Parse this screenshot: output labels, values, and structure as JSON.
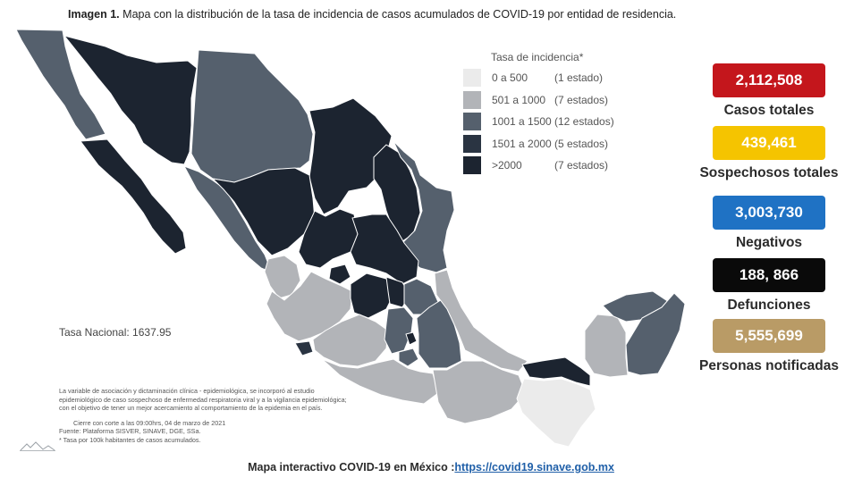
{
  "caption": {
    "label": "Imagen 1.",
    "text": "Mapa con la distribución de la tasa de incidencia de casos acumulados de COVID-19 por entidad de residencia."
  },
  "legend": {
    "title": "Tasa de incidencia*",
    "classes": [
      {
        "range": "0 a 500",
        "count": "(1 estado)",
        "color": "#ebebeb"
      },
      {
        "range": "501 a 1000",
        "count": "(7 estados)",
        "color": "#b2b4b8"
      },
      {
        "range": "1001 a 1500",
        "count": "(12 estados)",
        "color": "#55606d"
      },
      {
        "range": "1501 a 2000",
        "count": "(5 estados)",
        "color": "#2a3442"
      },
      {
        "range": ">2000",
        "count": "(7 estados)",
        "color": "#1c2430"
      }
    ]
  },
  "stats": [
    {
      "value": "2,112,508",
      "label": "Casos totales",
      "color": "#c4161c"
    },
    {
      "value": "439,461",
      "label": "Sospechosos totales",
      "color": "#f5c400"
    },
    {
      "value": "3,003,730",
      "label": "Negativos",
      "color": "#1f72c4"
    },
    {
      "value": "188, 866",
      "label": "Defunciones",
      "color": "#0a0a0a"
    },
    {
      "value": "5,555,699",
      "label": "Personas notificadas",
      "color": "#b99b66"
    }
  ],
  "national_rate": "Tasa Nacional: 1637.95",
  "notes": {
    "line1": "La variable de asociación y dictaminación clínica - epidemiológica, se incorporó al estudio",
    "line2": "epidemiológico de caso sospechoso de enfermedad respiratoria viral y a la vigilancia epidemiológica;",
    "line3": "con el objetivo de tener un mejor acercamiento al comportamiento de la epidemia en el país.",
    "cutoff": "Cierre con corte a las 09:00hrs, 04 de marzo de 2021",
    "source": "Fuente: Plataforma SISVER, SINAVE, DGE, SSa.",
    "rate_note": "* Tasa por 100k habitantes de casos acumulados."
  },
  "footer": {
    "text": "Mapa interactivo COVID-19 en México :",
    "link": "https://covid19.sinave.gob.mx"
  },
  "map": {
    "colors": {
      "c0": "#ebebeb",
      "c1": "#b2b4b8",
      "c2": "#55606d",
      "c3": "#2a3442",
      "c4": "#1c2430"
    }
  }
}
